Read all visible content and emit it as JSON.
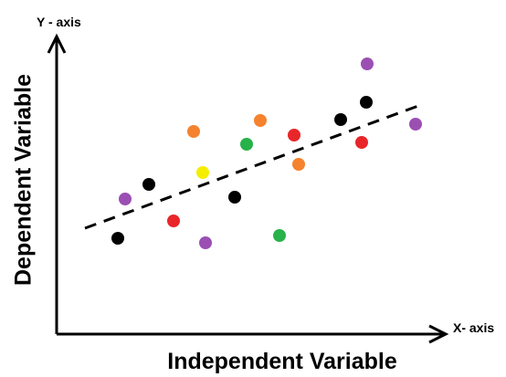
{
  "diagram": {
    "y_axis_name": "Y - axis",
    "x_axis_name": "X- axis",
    "y_label": "Dependent Variable",
    "x_label": "Independent Variable",
    "line_color": "#000000",
    "points": [
      {
        "color": "#000000"
      },
      {
        "color": "#9b4fb3"
      },
      {
        "color": "#000000"
      },
      {
        "color": "#e8262a"
      },
      {
        "color": "#9b4fb3"
      },
      {
        "color": "#f5822f"
      },
      {
        "color": "#f5ee00"
      },
      {
        "color": "#000000"
      },
      {
        "color": "#27b24a"
      },
      {
        "color": "#f5822f"
      },
      {
        "color": "#27b24a"
      },
      {
        "color": "#e8262a"
      },
      {
        "color": "#f5822f"
      },
      {
        "color": "#000000"
      },
      {
        "color": "#9b4fb3"
      },
      {
        "color": "#000000"
      },
      {
        "color": "#e8262a"
      },
      {
        "color": "#9b4fb3"
      }
    ]
  }
}
